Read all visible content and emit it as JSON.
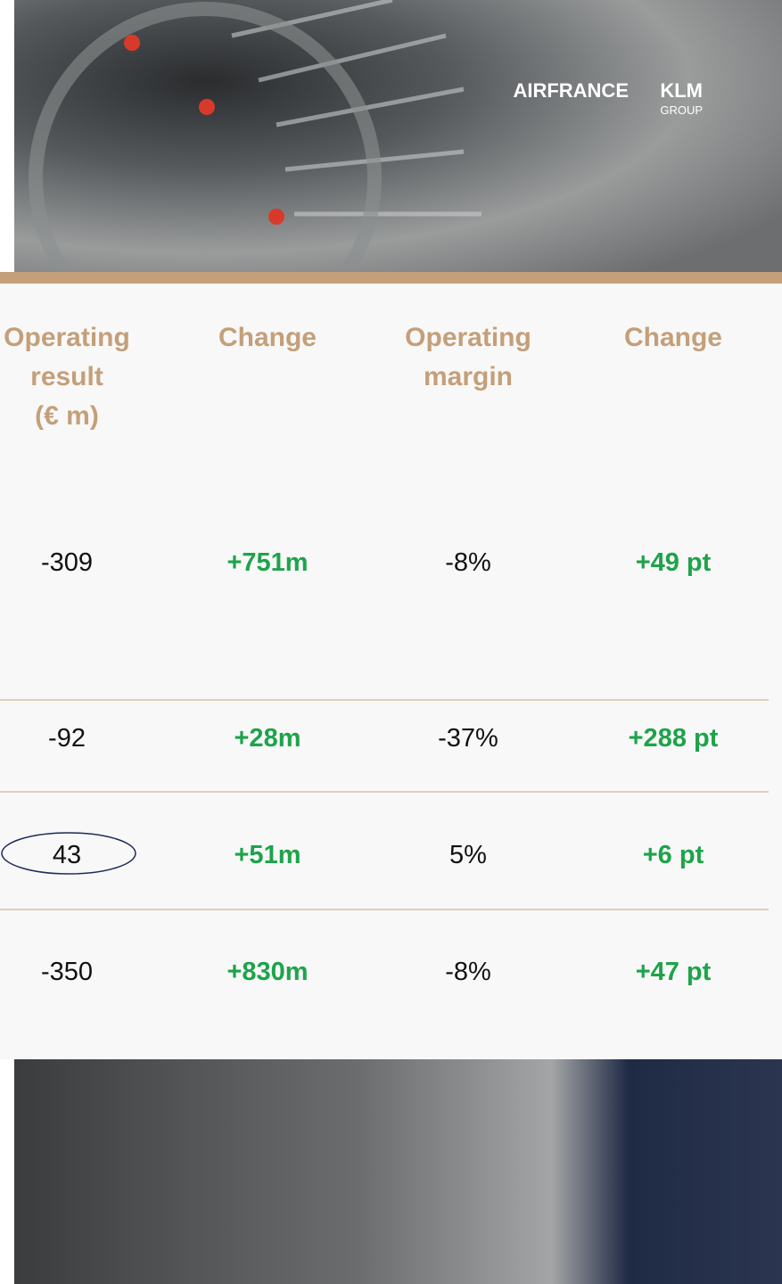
{
  "header": {
    "logo": {
      "brand": "AIRFRANCE",
      "brand2": "KLM",
      "sub": "GROUP"
    }
  },
  "table": {
    "columns": [
      "Operating result (€ m)",
      "Change",
      "Operating margin",
      "Change"
    ],
    "rows": [
      [
        "-309",
        "+751m",
        "-8%",
        "+49 pt"
      ],
      [
        "-92",
        "+28m",
        "-37%",
        "+288 pt"
      ],
      [
        "43",
        "+51m",
        "5%",
        "+6 pt"
      ],
      [
        "-350",
        "+830m",
        "-8%",
        "+47 pt"
      ]
    ]
  }
}
